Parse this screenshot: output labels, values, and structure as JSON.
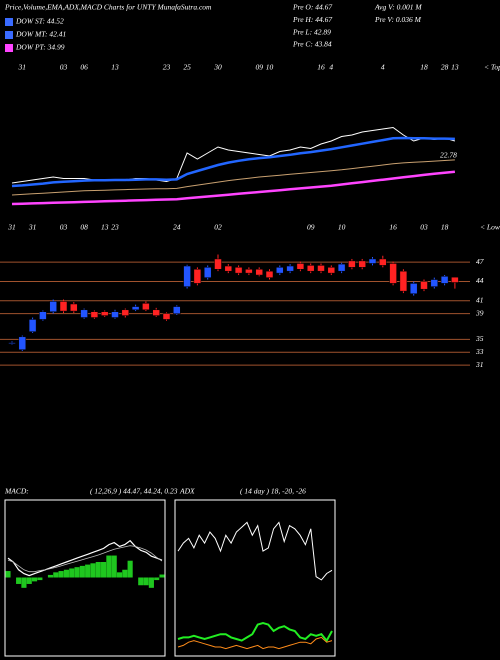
{
  "header": {
    "title": "Price,Volume,EMA,ADX,MACD Charts for UNTY MunafaSutra.com",
    "legend": [
      {
        "label": "DOW ST: 44.52",
        "color": "#3a6bff"
      },
      {
        "label": "DOW MT: 42.41",
        "color": "#3a6bff"
      },
      {
        "label": "DOW PT: 34.99",
        "color": "#ff44ff"
      }
    ],
    "stats": [
      "Pre  O: 44.67",
      "Pre  H: 44.67",
      "Pre  L: 42.89",
      "Pre  C: 43.84",
      "Avg  V: 0.001  M",
      "Pre  V: 0.036  M"
    ]
  },
  "chart_data": [
    {
      "type": "line",
      "annotation": "< Tops",
      "ylim": [
        10,
        60
      ],
      "categories": [
        null,
        "31",
        null,
        null,
        null,
        "03",
        null,
        "06",
        null,
        null,
        "13",
        null,
        null,
        null,
        null,
        "23",
        null,
        "25",
        null,
        null,
        "30",
        null,
        null,
        null,
        "09",
        "10",
        null,
        null,
        null,
        null,
        "16",
        "4",
        null,
        null,
        null,
        null,
        "4",
        null,
        null,
        null,
        "18",
        null,
        "28",
        "13"
      ],
      "series": [
        {
          "name": "Price",
          "color": "#ffffff",
          "width": 1,
          "values": [
            19,
            19.5,
            20,
            20.5,
            21,
            20.5,
            20.5,
            20.5,
            20,
            20,
            20,
            20,
            20.5,
            20.5,
            20,
            19.5,
            20.5,
            29,
            27,
            29,
            31,
            30,
            29.5,
            29,
            28.5,
            28,
            29.5,
            30,
            31,
            30.5,
            32,
            33,
            34.5,
            35,
            36,
            36.5,
            37,
            37.5,
            35,
            33,
            34,
            33.5,
            34,
            33
          ]
        },
        {
          "name": "EMA short",
          "color": "#2266ff",
          "width": 2.5,
          "values": [
            18,
            18.2,
            18.5,
            18.8,
            19.2,
            19.4,
            19.6,
            19.8,
            19.9,
            19.9,
            20,
            20,
            20.1,
            20.2,
            20.2,
            20.1,
            20.2,
            22,
            23,
            24,
            25,
            25.8,
            26.4,
            26.9,
            27.3,
            27.6,
            28,
            28.4,
            28.9,
            29.3,
            29.8,
            30.3,
            30.9,
            31.5,
            32.1,
            32.7,
            33.3,
            33.9,
            34,
            33.9,
            33.9,
            33.8,
            33.8,
            33.7
          ]
        },
        {
          "name": "EMA mid",
          "color": "#c8a070",
          "width": 1,
          "values": [
            15,
            15.2,
            15.4,
            15.6,
            15.8,
            16,
            16.2,
            16.4,
            16.5,
            16.6,
            16.7,
            16.8,
            16.9,
            17,
            17.1,
            17.1,
            17.2,
            17.8,
            18.3,
            18.8,
            19.3,
            19.8,
            20.2,
            20.6,
            21,
            21.3,
            21.6,
            21.9,
            22.2,
            22.5,
            22.8,
            23.1,
            23.4,
            23.8,
            24.2,
            24.6,
            25,
            25.4,
            25.7,
            25.9,
            26.1,
            26.3,
            26.5,
            26.7
          ]
        },
        {
          "name": "EMA long",
          "color": "#ff44ff",
          "width": 2.5,
          "values": [
            12,
            12.1,
            12.2,
            12.3,
            12.4,
            12.5,
            12.6,
            12.7,
            12.8,
            12.9,
            13,
            13.1,
            13.2,
            13.3,
            13.4,
            13.5,
            13.6,
            13.9,
            14.2,
            14.5,
            14.8,
            15.1,
            15.4,
            15.7,
            16,
            16.3,
            16.6,
            16.9,
            17.2,
            17.5,
            17.8,
            18.1,
            18.5,
            18.9,
            19.3,
            19.7,
            20.1,
            20.5,
            20.9,
            21.3,
            21.7,
            22.1,
            22.45,
            22.78
          ],
          "value_labels": [
            null,
            null,
            null,
            null,
            null,
            null,
            null,
            null,
            null,
            null,
            null,
            null,
            null,
            null,
            null,
            null,
            null,
            null,
            null,
            null,
            null,
            null,
            null,
            null,
            null,
            null,
            null,
            null,
            null,
            null,
            null,
            null,
            null,
            null,
            null,
            null,
            null,
            null,
            null,
            null,
            null,
            null,
            null,
            "22.78"
          ]
        }
      ]
    },
    {
      "type": "candlestick",
      "annotation": "< Lows",
      "ylim": [
        29,
        52
      ],
      "yticks": [
        47,
        44,
        41,
        39,
        35,
        33,
        31
      ],
      "grid_color": "#a0522d",
      "up_color": "#2255ff",
      "down_color": "#ff2222",
      "categories": [
        "31",
        null,
        "31",
        null,
        null,
        "03",
        null,
        "08",
        null,
        "13",
        "23",
        null,
        null,
        null,
        null,
        null,
        "24",
        null,
        null,
        null,
        "02",
        null,
        null,
        null,
        null,
        null,
        null,
        null,
        null,
        "09",
        null,
        null,
        "10",
        null,
        null,
        null,
        null,
        "16",
        null,
        null,
        "03",
        null,
        "18",
        null
      ],
      "open": [
        34.4,
        33.4,
        36.2,
        38.1,
        39.3,
        40.9,
        40.5,
        38.4,
        39.3,
        39.3,
        38.4,
        39.6,
        39.6,
        40.6,
        39.6,
        39.0,
        39.0,
        43.2,
        45.9,
        44.6,
        47.5,
        46.4,
        46.2,
        45.9,
        45.9,
        45.6,
        45.3,
        45.6,
        46.8,
        46.5,
        46.5,
        46.2,
        45.6,
        47.2,
        47.2,
        46.8,
        47.5,
        46.8,
        45.6,
        42.1,
        44.0,
        43.2,
        43.7,
        44.67
      ],
      "high": [
        34.7,
        35.6,
        38.4,
        39.5,
        41.2,
        41.2,
        40.8,
        39.8,
        39.5,
        39.5,
        39.6,
        39.8,
        40.4,
        40.9,
        39.9,
        39.2,
        40.3,
        46.6,
        46.2,
        46.5,
        48.2,
        46.7,
        46.5,
        46.2,
        46.2,
        45.9,
        46.5,
        46.7,
        47.1,
        46.8,
        46.8,
        46.5,
        46.9,
        47.5,
        47.5,
        47.8,
        48.0,
        47.1,
        45.9,
        44.0,
        44.3,
        44.6,
        45.0,
        44.67
      ],
      "low": [
        34.2,
        33.2,
        36.0,
        37.9,
        39.0,
        39.1,
        39.1,
        38.2,
        38.2,
        38.5,
        38.2,
        38.4,
        39.4,
        39.4,
        38.5,
        37.9,
        38.8,
        42.9,
        43.4,
        44.3,
        45.6,
        45.3,
        45.0,
        45.0,
        44.8,
        44.3,
        45.0,
        45.3,
        45.6,
        45.3,
        45.3,
        45.0,
        45.3,
        45.9,
        45.9,
        46.5,
        46.2,
        43.4,
        42.2,
        41.8,
        42.5,
        42.9,
        43.4,
        42.89
      ],
      "close": [
        34.5,
        35.4,
        38.1,
        39.3,
        40.9,
        39.4,
        39.4,
        39.6,
        38.4,
        38.7,
        39.3,
        38.7,
        40.1,
        39.6,
        38.7,
        38.1,
        40.1,
        46.4,
        43.7,
        46.2,
        45.9,
        45.6,
        45.3,
        45.3,
        45.0,
        44.6,
        46.2,
        46.4,
        45.9,
        45.6,
        45.6,
        45.3,
        46.7,
        46.2,
        46.2,
        47.5,
        46.5,
        43.7,
        42.5,
        43.7,
        42.8,
        44.3,
        44.8,
        43.84
      ]
    },
    {
      "type": "line",
      "title": "MACD:",
      "subtitle": "( 12,26,9 ) 44.47, 44.24, 0.23",
      "ylim": [
        20,
        60
      ],
      "y2lim": [
        -6,
        6
      ],
      "series": [
        {
          "name": "MACD",
          "color": "#ffffff",
          "width": 1.2,
          "values": [
            45,
            44,
            42,
            41,
            40.5,
            41,
            41.5,
            42,
            42.5,
            43,
            43.5,
            44,
            44.5,
            45,
            45.5,
            46,
            46.5,
            47,
            47.5,
            48.5,
            49,
            48,
            48.5,
            49.5,
            48,
            47,
            46.5,
            45.5,
            45,
            44.47
          ]
        },
        {
          "name": "Signal",
          "color": "#bbbbbb",
          "width": 0.8,
          "values": [
            44.5,
            44,
            43,
            42,
            41.5,
            41.5,
            41.8,
            42,
            42.3,
            42.6,
            43,
            43.4,
            43.8,
            44.2,
            44.6,
            45,
            45.4,
            45.8,
            46.3,
            46.8,
            47.3,
            47.6,
            47.9,
            48.2,
            48,
            47.6,
            47.1,
            46.3,
            45.2,
            44.24
          ]
        },
        {
          "name": "Histogram",
          "color": "#22dd22",
          "axis": "y2",
          "kind": "bar",
          "values": [
            0.5,
            0,
            -0.5,
            -0.8,
            -0.5,
            -0.3,
            -0.2,
            0,
            0.2,
            0.4,
            0.5,
            0.6,
            0.7,
            0.8,
            0.9,
            1,
            1.1,
            1.2,
            1.2,
            1.7,
            1.7,
            0.4,
            0.6,
            1.3,
            0,
            -0.6,
            -0.6,
            -0.8,
            -0.2,
            0.23
          ]
        }
      ]
    },
    {
      "type": "line",
      "title": "ADX",
      "subtitle": "( 14 day ) 18, -20, -26",
      "ylim": [
        -35,
        62
      ],
      "series": [
        {
          "name": "ADX",
          "color": "#ffffff",
          "width": 1,
          "values": [
            30,
            35,
            38,
            32,
            40,
            35,
            42,
            38,
            30,
            40,
            35,
            42,
            45,
            48,
            40,
            46,
            30,
            32,
            44,
            48,
            36,
            46,
            44,
            40,
            34,
            44,
            14,
            12,
            16,
            18
          ]
        },
        {
          "name": "+DI",
          "color": "#22ee22",
          "width": 2,
          "values": [
            -25,
            -24,
            -24,
            -23,
            -24,
            -25,
            -24,
            -23,
            -22,
            -22,
            -24,
            -25,
            -26,
            -24,
            -22,
            -16,
            -15,
            -16,
            -20,
            -18,
            -17,
            -19,
            -20,
            -24,
            -25,
            -22,
            -23,
            -22,
            -26,
            -20
          ]
        },
        {
          "name": "-DI",
          "color": "#ff8c1a",
          "width": 1,
          "values": [
            -30,
            -29,
            -27,
            -26,
            -27,
            -28,
            -29,
            -30,
            -30,
            -31,
            -30,
            -29,
            -30,
            -31,
            -30,
            -29,
            -31,
            -30,
            -30,
            -31,
            -30,
            -29,
            -28,
            -27,
            -27,
            -28,
            -25,
            -24,
            -27,
            -26
          ]
        }
      ]
    }
  ]
}
